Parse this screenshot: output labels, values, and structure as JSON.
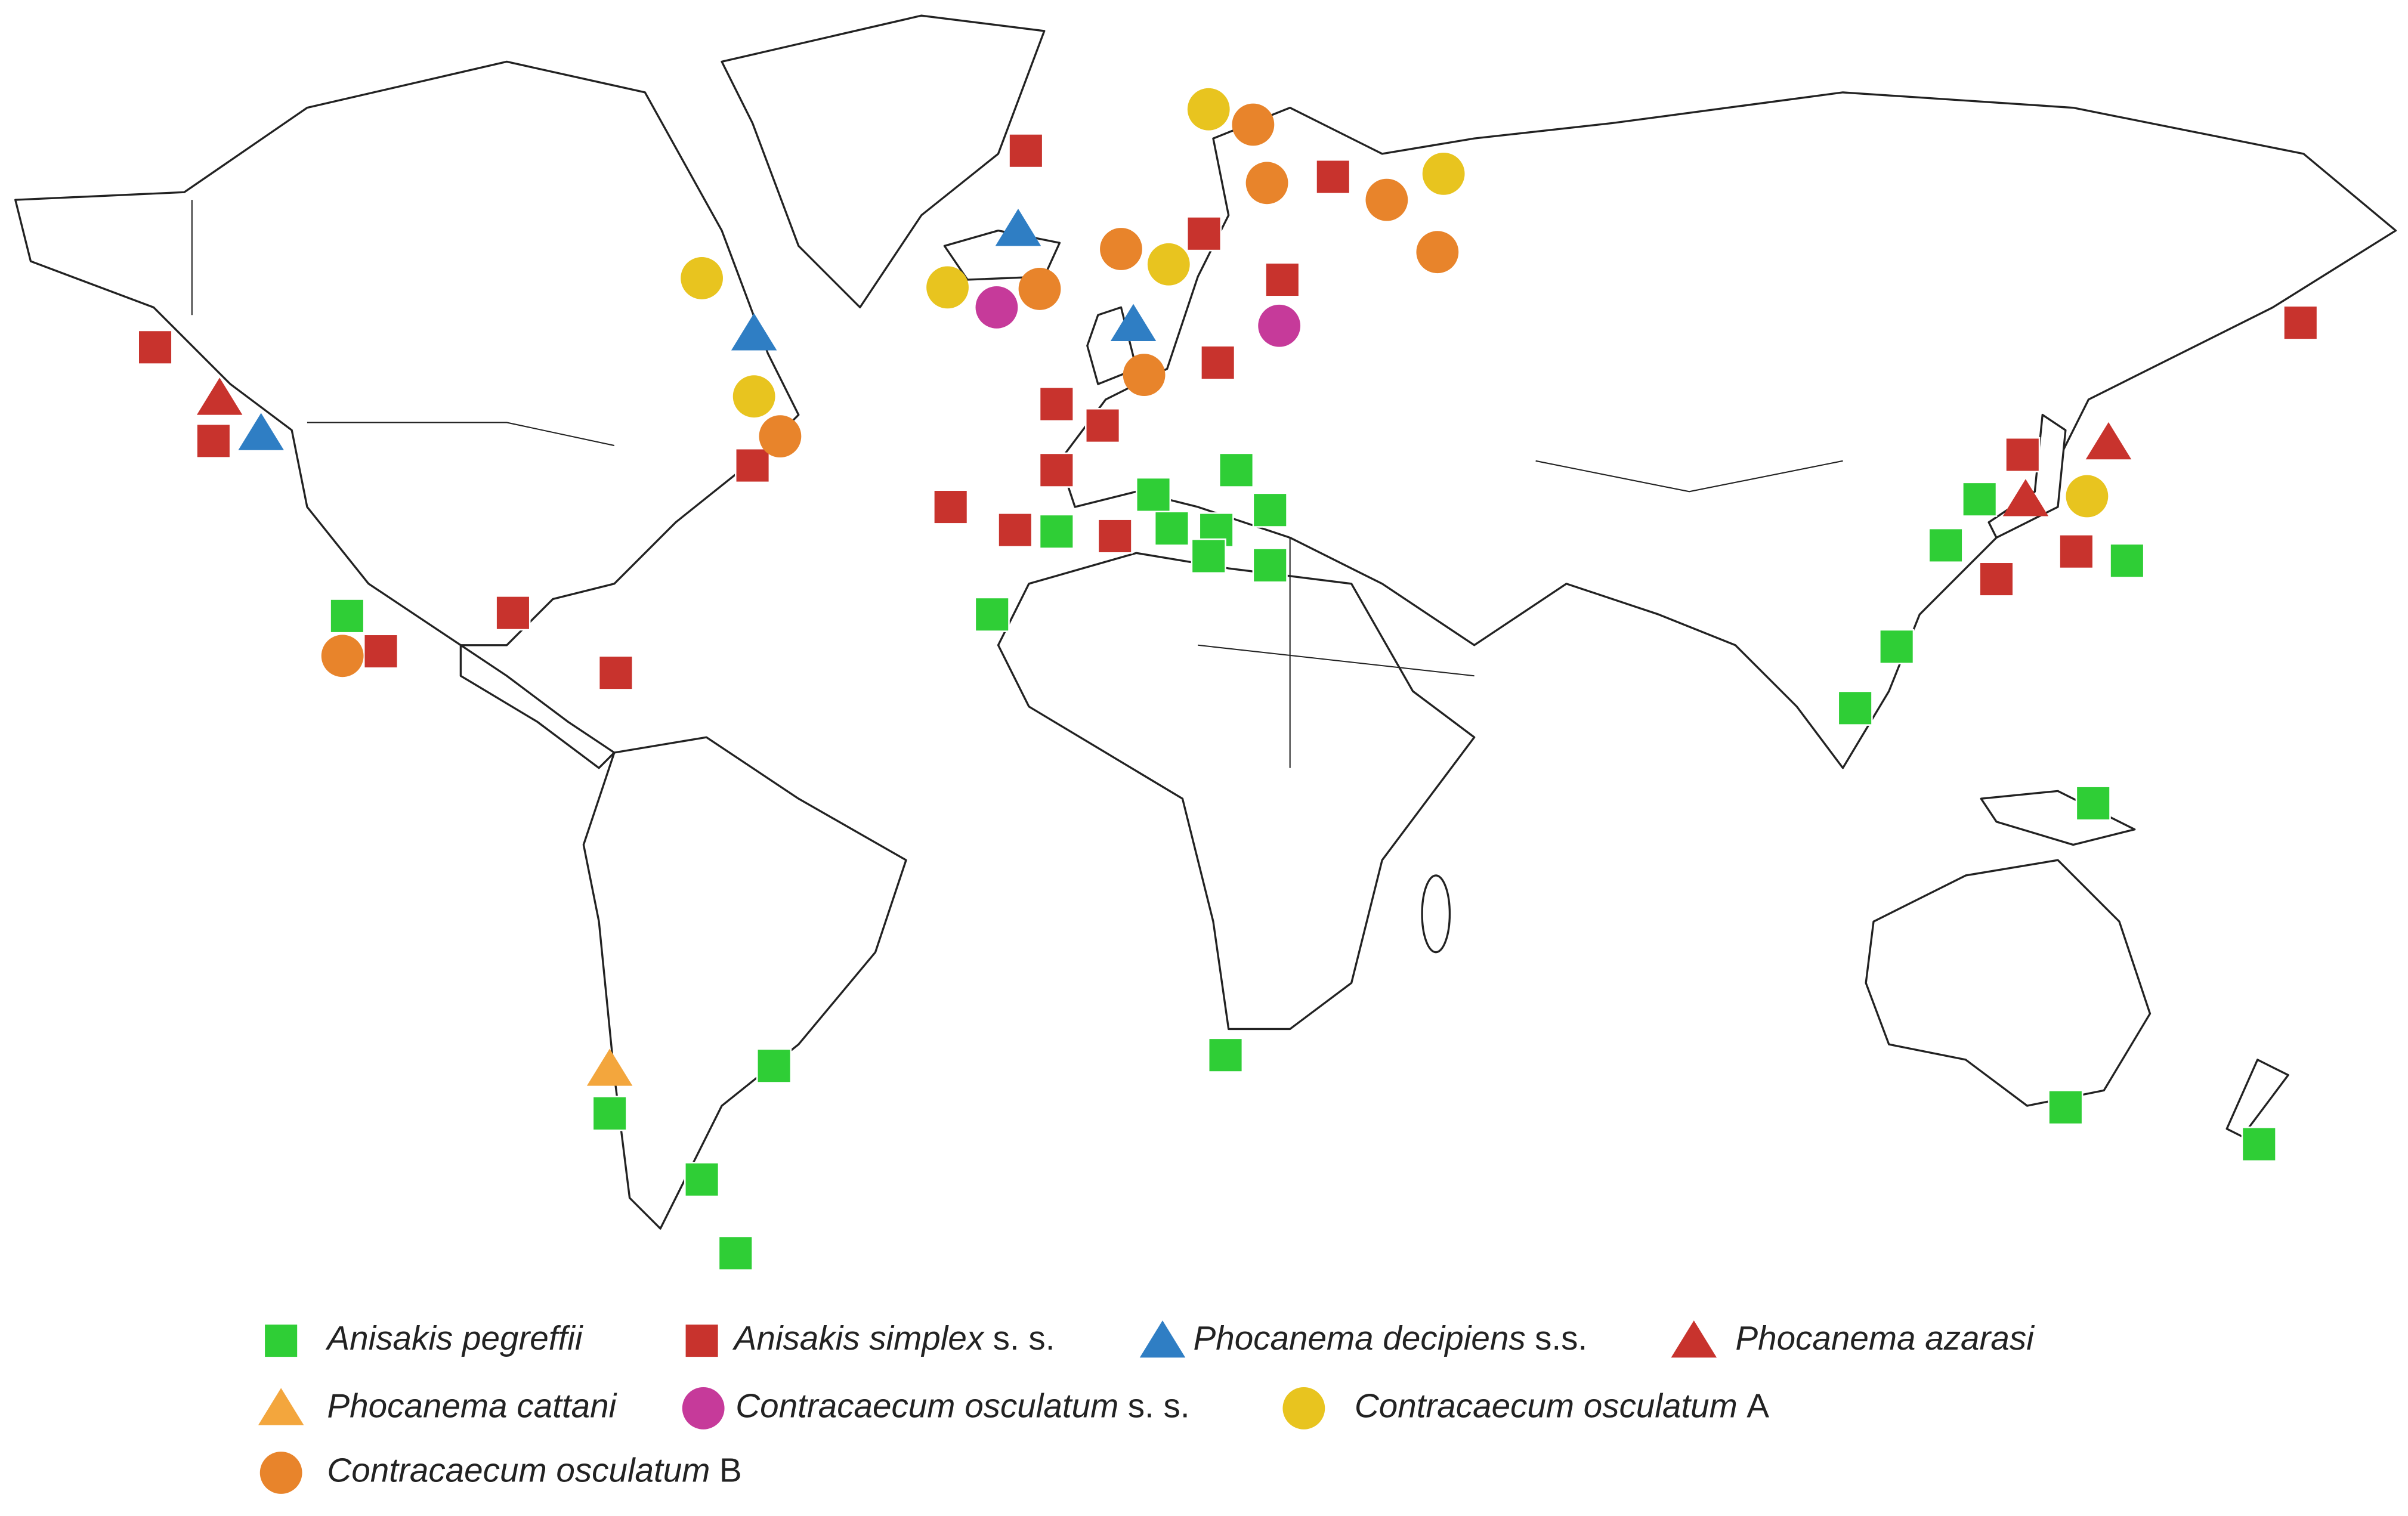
{
  "legend": {
    "items": [
      {
        "name": "Anisakis pegreffii",
        "shape": "square",
        "color": "#2fce36"
      },
      {
        "name": "Anisakis simplex",
        "qualifier": "s. s.",
        "shape": "square",
        "color": "#c8332d"
      },
      {
        "name": "Phocanema decipiens",
        "qualifier": "s.s.",
        "shape": "triangle",
        "color": "#2f7ec4"
      },
      {
        "name": "Phocanema azarasi",
        "shape": "triangle",
        "color": "#c8332d"
      },
      {
        "name": "Phocanema cattani",
        "shape": "triangle",
        "color": "#f3a63d"
      },
      {
        "name": "Contracaecum osculatum",
        "qualifier": "s. s.",
        "shape": "circle",
        "color": "#c63a9a"
      },
      {
        "name": "Contracaecum osculatum",
        "qualifier": "A",
        "shape": "circle",
        "color": "#e8c41f"
      },
      {
        "name": "Contracaecum osculatum",
        "qualifier": "B",
        "shape": "circle",
        "color": "#e8842b"
      }
    ]
  }
}
